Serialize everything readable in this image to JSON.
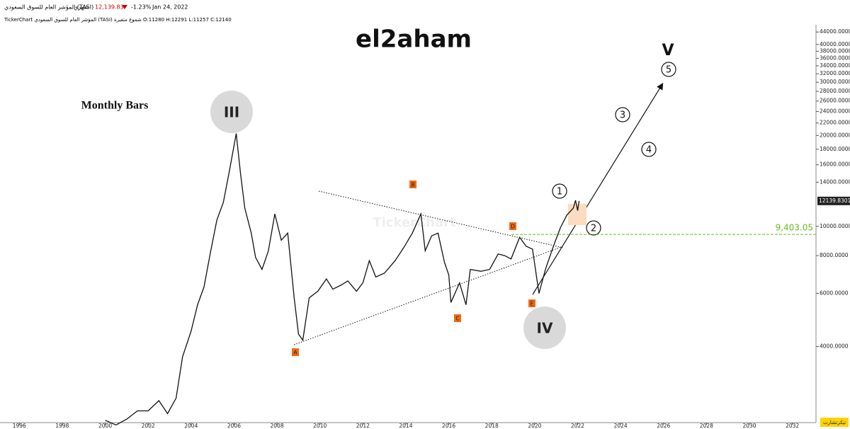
{
  "header": {
    "symbol": "المؤشر العام للسوق السعودي (TASI)",
    "period": "شهري",
    "price": "12,139.83",
    "change": "-1.23%",
    "date": "Jan 24, 2022",
    "info": "TickerChart المؤشر العام للسوق السعودي (TASI) شموع متغيرة O:11280 H:12291 L:11257 C:12140",
    "watermark": "TickerChart",
    "logo": "تيكرتشارت"
  },
  "chart_data": {
    "type": "line",
    "title": "el2aham",
    "subtitle": "Monthly Bars",
    "color": "#111111",
    "log_scale": true,
    "grid": false,
    "x": [
      2000.0,
      2000.5,
      2001.0,
      2001.5,
      2002.0,
      2002.5,
      2002.9,
      2003.3,
      2003.6,
      2004.0,
      2004.3,
      2004.6,
      2004.9,
      2005.2,
      2005.5,
      2005.8,
      2006.1,
      2006.3,
      2006.5,
      2006.8,
      2007.0,
      2007.3,
      2007.6,
      2007.9,
      2008.2,
      2008.5,
      2008.8,
      2009.0,
      2009.2,
      2009.5,
      2009.9,
      2010.3,
      2010.6,
      2011.0,
      2011.3,
      2011.7,
      2012.0,
      2012.3,
      2012.6,
      2013.0,
      2013.5,
      2013.9,
      2014.3,
      2014.7,
      2014.9,
      2015.2,
      2015.5,
      2015.8,
      2016.0,
      2016.1,
      2016.5,
      2016.8,
      2017.0,
      2017.5,
      2017.9,
      2018.3,
      2018.6,
      2018.9,
      2019.3,
      2019.6,
      2019.9,
      2020.2,
      2020.5,
      2020.9,
      2021.2,
      2021.5,
      2021.8,
      2021.9,
      2022.0,
      2022.07
    ],
    "values": [
      2280,
      2200,
      2300,
      2450,
      2450,
      2650,
      2400,
      2700,
      3700,
      4500,
      5500,
      6300,
      8200,
      10500,
      12000,
      15500,
      20300,
      15000,
      11500,
      9500,
      7900,
      7200,
      8300,
      11000,
      9000,
      9500,
      5800,
      4400,
      4200,
      5800,
      6100,
      6700,
      6200,
      6400,
      6600,
      6100,
      6500,
      7700,
      6800,
      7000,
      7700,
      8500,
      9500,
      11000,
      8300,
      9300,
      9500,
      7600,
      6900,
      5600,
      6500,
      5500,
      7200,
      7100,
      7200,
      8100,
      8000,
      7800,
      9200,
      8600,
      8400,
      6000,
      7200,
      8700,
      9900,
      10900,
      11500,
      12200,
      11280,
      12140
    ],
    "xlim": [
      1995.1,
      2033.1
    ],
    "xticks": [
      1996,
      1998,
      2000,
      2002,
      2004,
      2006,
      2008,
      2010,
      2012,
      2014,
      2016,
      2018,
      2020,
      2022,
      2024,
      2026,
      2028,
      2030,
      2032
    ],
    "ylim": [
      2240,
      46500
    ],
    "yticks": [
      {
        "value": 4000,
        "label": "4000.0000"
      },
      {
        "value": 6000,
        "label": "6000.0000"
      },
      {
        "value": 8000,
        "label": "8000.0000"
      },
      {
        "value": 10000,
        "label": "10000.0000"
      },
      {
        "value": 14000,
        "label": "14000.0000"
      },
      {
        "value": 16000,
        "label": "16000.0000"
      },
      {
        "value": 18000,
        "label": "18000.0000"
      },
      {
        "value": 20000,
        "label": "20000.0000"
      },
      {
        "value": 22000,
        "label": "22000.0000"
      },
      {
        "value": 24000,
        "label": "24000.0000"
      },
      {
        "value": 26000,
        "label": "26000.0000"
      },
      {
        "value": 28000,
        "label": "28000.0000"
      },
      {
        "value": 30000,
        "label": "30000.0000"
      },
      {
        "value": 32000,
        "label": "32000.0000"
      },
      {
        "value": 34000,
        "label": "34000.0000"
      },
      {
        "value": 36000,
        "label": "36000.0000"
      },
      {
        "value": 38000,
        "label": "38000.0000"
      },
      {
        "value": 40000,
        "label": "40000.0000"
      },
      {
        "value": 44000,
        "label": "44000.0000"
      }
    ],
    "last_price": 12139.8301,
    "level": {
      "value": 9403.05,
      "label": "9,403.05"
    },
    "level_color": "#66bb22",
    "annotations": {
      "waves": [
        "III",
        "IV",
        "V"
      ],
      "counts": [
        "1",
        "2",
        "3",
        "4",
        "5"
      ],
      "points": [
        "A",
        "B",
        "C",
        "D",
        "E"
      ]
    }
  }
}
